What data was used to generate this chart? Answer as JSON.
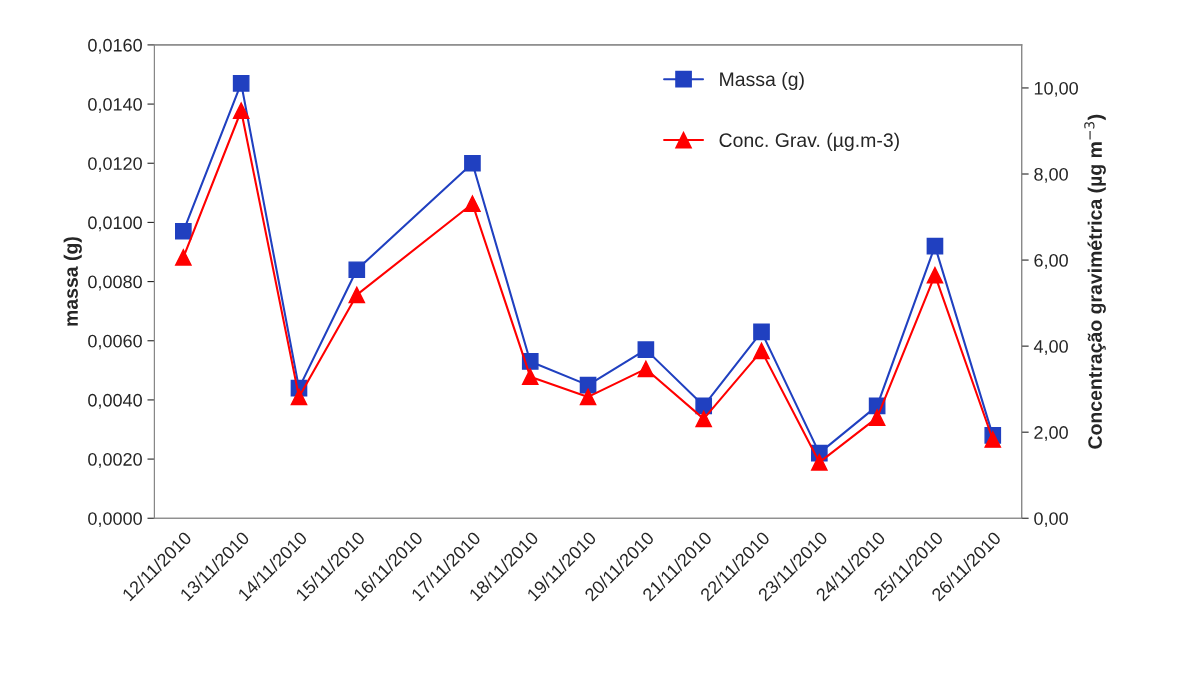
{
  "chart_data": {
    "type": "line",
    "categories": [
      "12/11/2010",
      "13/11/2010",
      "14/11/2010",
      "15/11/2010",
      "16/11/2010",
      "17/11/2010",
      "18/11/2010",
      "19/11/2010",
      "20/11/2010",
      "21/11/2010",
      "22/11/2010",
      "23/11/2010",
      "24/11/2010",
      "25/11/2010",
      "26/11/2010"
    ],
    "series": [
      {
        "name": "Massa (g)",
        "color": "#2040c0",
        "marker": "square",
        "values": [
          0.0097,
          0.0147,
          0.0044,
          0.0084,
          null,
          0.012,
          0.0053,
          0.0045,
          0.0057,
          0.0038,
          0.0063,
          0.0022,
          0.0038,
          0.0092,
          0.0028
        ]
      },
      {
        "name": "Conc. Grav. (µg.m-3)",
        "color": "#ff0000",
        "marker": "triangle",
        "axis": "y2",
        "values": [
          6.06,
          9.47,
          2.82,
          5.19,
          null,
          7.31,
          3.29,
          2.82,
          3.47,
          2.31,
          3.89,
          1.3,
          2.34,
          5.65,
          1.83
        ]
      }
    ],
    "ylabel": "massa (g)",
    "y2label": "Concentração gravimétrica (µg m$^{−3}$)",
    "ylim": [
      0,
      0.016
    ],
    "yticks": [
      {
        "value": 0,
        "label": "0,0000"
      },
      {
        "value": 0.002,
        "label": "0,0020"
      },
      {
        "value": 0.004,
        "label": "0,0040"
      },
      {
        "value": 0.006,
        "label": "0,0060"
      },
      {
        "value": 0.008,
        "label": "0,0080"
      },
      {
        "value": 0.01,
        "label": "0,0100"
      },
      {
        "value": 0.012,
        "label": "0,0120"
      },
      {
        "value": 0.014,
        "label": "0,0140"
      },
      {
        "value": 0.016,
        "label": "0,0160"
      }
    ],
    "y2lim": [
      0,
      11
    ],
    "y2ticks": [
      {
        "value": 0,
        "label": "0,00"
      },
      {
        "value": 2,
        "label": "2,00"
      },
      {
        "value": 4,
        "label": "4,00"
      },
      {
        "value": 6,
        "label": "6,00"
      },
      {
        "value": 8,
        "label": "8,00"
      },
      {
        "value": 10,
        "label": "10,00"
      }
    ],
    "grid": false,
    "legend": "top right",
    "line_style": "solid"
  }
}
